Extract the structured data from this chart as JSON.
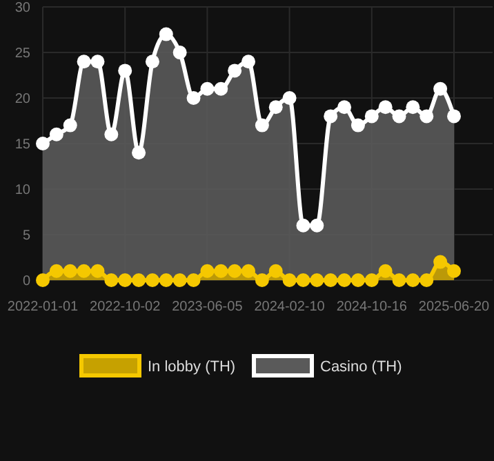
{
  "chart_data": {
    "type": "area",
    "categories": [
      "2022-01-01",
      null,
      null,
      null,
      null,
      null,
      "2022-10-02",
      null,
      null,
      null,
      null,
      null,
      "2023-06-05",
      null,
      null,
      null,
      null,
      null,
      "2024-02-10",
      null,
      null,
      null,
      null,
      null,
      "2024-10-16",
      null,
      null,
      null,
      null,
      null,
      "2025-06-20"
    ],
    "series": [
      {
        "name": "In lobby (TH)",
        "color": "#f5c800",
        "values": [
          0,
          1,
          1,
          1,
          1,
          0,
          0,
          0,
          0,
          0,
          0,
          0,
          1,
          1,
          1,
          1,
          0,
          1,
          0,
          0,
          0,
          0,
          0,
          0,
          0,
          1,
          0,
          0,
          0,
          2,
          1
        ]
      },
      {
        "name": "Casino (TH)",
        "color": "#ffffff",
        "values": [
          15,
          16,
          17,
          24,
          24,
          16,
          23,
          14,
          24,
          27,
          25,
          20,
          21,
          21,
          23,
          24,
          17,
          19,
          20,
          6,
          6,
          18,
          19,
          17,
          18,
          19,
          18,
          19,
          18,
          21,
          18
        ]
      }
    ],
    "ylim": [
      0,
      30
    ],
    "yticks": [
      0,
      5,
      10,
      15,
      20,
      25,
      30
    ],
    "grid": true,
    "legend": "bottom",
    "marker": "circle"
  }
}
